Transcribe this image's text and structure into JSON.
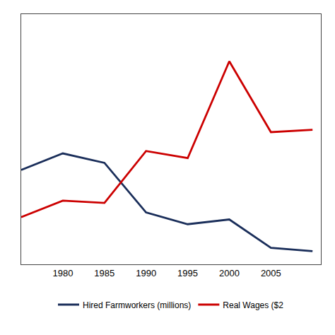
{
  "chart_data": {
    "type": "line",
    "x": [
      1975,
      1980,
      1985,
      1990,
      1995,
      2000,
      2005,
      2010
    ],
    "series": [
      {
        "name": "Hired Farmworkers (millions)",
        "color": "#1a2e5a",
        "values": [
          2.5,
          2.85,
          2.65,
          1.6,
          1.35,
          1.45,
          0.85,
          0.78
        ]
      },
      {
        "name": "Real Wages ($2",
        "color": "#cc0000",
        "values": [
          1.5,
          1.85,
          1.8,
          2.9,
          2.75,
          4.8,
          3.3,
          3.35
        ]
      }
    ],
    "xlim": [
      1975,
      2011
    ],
    "xticks": [
      1980,
      1985,
      1990,
      1995,
      2000,
      2005
    ],
    "ylim": [
      0.5,
      5.8
    ],
    "yticks": [],
    "grid": false,
    "legend": "bottom",
    "tick_labels": "x"
  }
}
